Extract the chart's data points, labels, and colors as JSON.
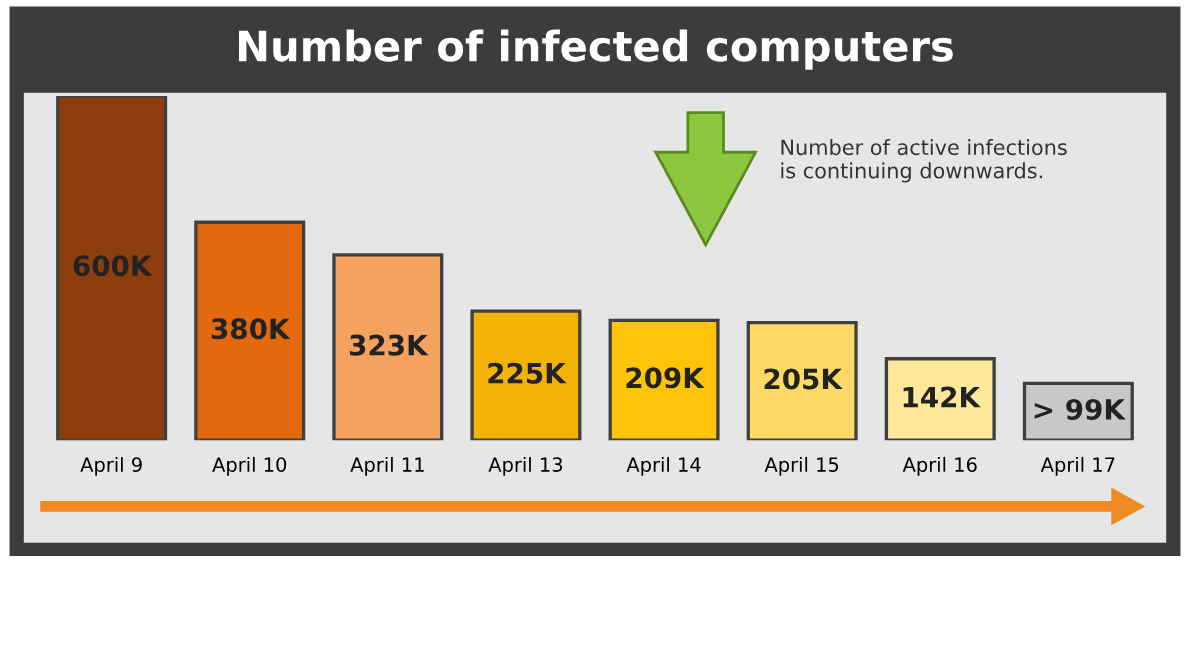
{
  "chart_data": {
    "type": "bar",
    "title": "Number of infected computers",
    "categories": [
      "April 9",
      "April 10",
      "April 11",
      "April 13",
      "April 14",
      "April 15",
      "April 16",
      "April 17"
    ],
    "values": [
      600,
      380,
      323,
      225,
      209,
      205,
      142,
      99
    ],
    "value_labels": [
      "600K",
      "380K",
      "323K",
      "225K",
      "209K",
      "205K",
      "142K",
      "> 99K"
    ],
    "colors": [
      "#8e3e0c",
      "#e3690f",
      "#f5a25e",
      "#f2b305",
      "#fec40a",
      "#ffd966",
      "#ffe79c",
      "#c8c8c8"
    ],
    "annotations": [
      "Number of active infections\nis continuing downwards."
    ],
    "grid": false,
    "legend": false
  }
}
